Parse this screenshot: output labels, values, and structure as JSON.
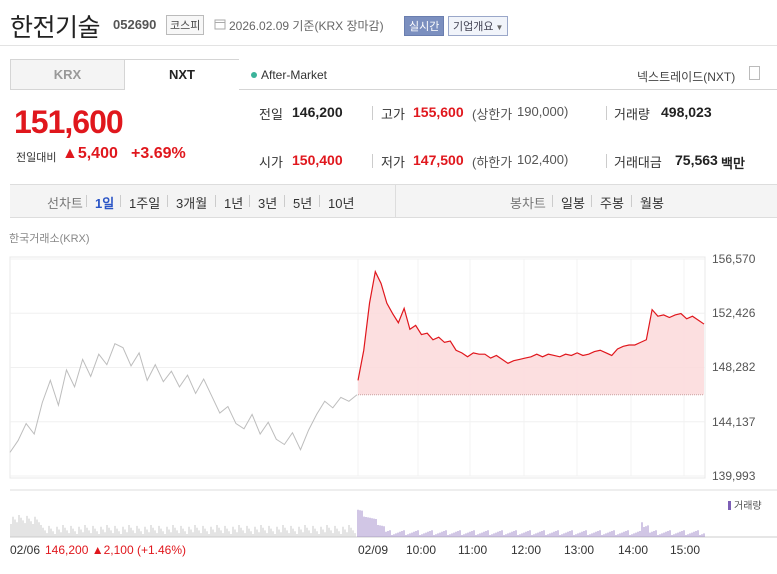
{
  "header": {
    "title": "한전기술",
    "code": "052690",
    "market": "코스피",
    "date": "2026.02.09 기준(KRX 장마감)",
    "realtime": "실시간",
    "company": "기업개요"
  },
  "exchange_tabs": [
    {
      "label": "KRX",
      "selected": false
    },
    {
      "label": "NXT",
      "selected": true
    }
  ],
  "after_market": "After-Market",
  "nextrade": "넥스트레이드(NXT)",
  "quote": {
    "price": "151,600",
    "change_label": "전일대비",
    "change_abs": "▲5,400",
    "change_pct": "+3.69%"
  },
  "stats": {
    "prev_label": "전일",
    "prev": "146,200",
    "open_label": "시가",
    "open": "150,400",
    "high_label": "고가",
    "high": "155,600",
    "upper_label": "(상한가",
    "upper": "190,000)",
    "low_label": "저가",
    "low": "147,500",
    "lower_label": "(하한가",
    "lower": "102,400)",
    "volume_label": "거래량",
    "volume": "498,023",
    "amount_label": "거래대금",
    "amount": "75,563",
    "amount_unit": "백만"
  },
  "periods": {
    "line_label": "선차트",
    "line_items": [
      "1일",
      "1주일",
      "3개월",
      "1년",
      "3년",
      "5년",
      "10년"
    ],
    "active": "1일",
    "candle_label": "봉차트",
    "candle_items": [
      "일봉",
      "주봉",
      "월봉"
    ]
  },
  "chart_caption": "한국거래소(KRX)",
  "colors": {
    "up": "#e0171d",
    "prev_line": "#bdbdbd",
    "volume": "#7d5fb6",
    "active_tab": "#2b55c6"
  },
  "chart_data": {
    "type": "line",
    "ylim": [
      139993,
      156570
    ],
    "y_ticks": [
      "156,570",
      "152,426",
      "148,282",
      "144,137",
      "139,993"
    ],
    "x_ticks": [
      "02/09",
      "10:00",
      "11:00",
      "12:00",
      "13:00",
      "14:00",
      "15:00"
    ],
    "baseline": 146200,
    "volume_label": "거래량",
    "prev_day": {
      "date": "02/06",
      "close": "146,200",
      "change": "▲2,100 (+1.46%)"
    },
    "series": [
      {
        "values": [
          141800,
          142700,
          144000,
          143200,
          145600,
          147300,
          145400,
          148100,
          146800,
          148900,
          147600,
          149300,
          148500,
          150100,
          149800,
          148400,
          149400,
          147300,
          148500,
          147200,
          148000,
          146800,
          147700,
          146300,
          147400,
          146100,
          144800,
          145300,
          144000,
          143600,
          144700,
          143200,
          144100,
          142800,
          142400,
          143300,
          142000,
          143500,
          144700,
          145700,
          145200,
          146000,
          145700,
          146200
        ]
      },
      {
        "values": [
          147300,
          149600,
          153200,
          155600,
          154700,
          153200,
          152400,
          151700,
          152800,
          151200,
          151500,
          150800,
          150900,
          150400,
          150600,
          150200,
          150300,
          149600,
          149400,
          149100,
          149400,
          149300,
          149300,
          149000,
          149200,
          148900,
          148600,
          148800,
          148900,
          149000,
          149100,
          149300,
          149100,
          149300,
          149200,
          149100,
          149300,
          149200,
          149400,
          149200,
          149300,
          149500,
          149600,
          149400,
          149200,
          149700,
          149900,
          150000,
          150000,
          150200,
          150400,
          152700,
          152200,
          152300,
          152100,
          152300,
          152400,
          152000,
          152200,
          151900,
          151600
        ]
      }
    ]
  }
}
